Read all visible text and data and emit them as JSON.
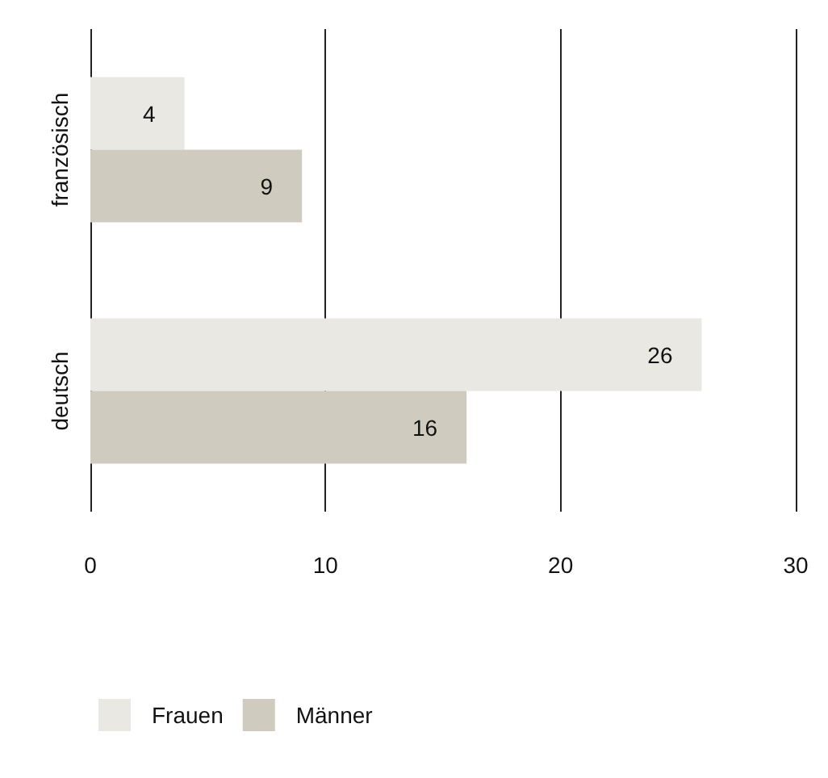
{
  "chart_data": {
    "type": "bar",
    "orientation": "horizontal",
    "categories": [
      "französisch",
      "deutsch"
    ],
    "series": [
      {
        "name": "Frauen",
        "color": "#e9e8e3",
        "values": [
          4,
          26
        ]
      },
      {
        "name": "Männer",
        "color": "#cfccbf",
        "values": [
          9,
          16
        ]
      }
    ],
    "xlim": [
      0,
      30
    ],
    "xticks": [
      0,
      10,
      20,
      30
    ],
    "grid": "x",
    "legend": "bottom left",
    "data_labels": true
  }
}
